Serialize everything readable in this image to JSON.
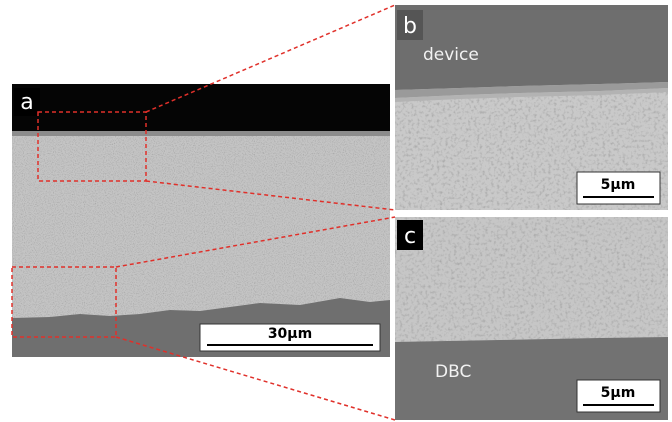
{
  "panels": [
    {
      "label": "a",
      "scale_bar": "30μm"
    },
    {
      "label": "b",
      "region": "device",
      "scale_bar": "5μm"
    },
    {
      "label": "c",
      "region": "DBC",
      "scale_bar": "5μm"
    }
  ]
}
